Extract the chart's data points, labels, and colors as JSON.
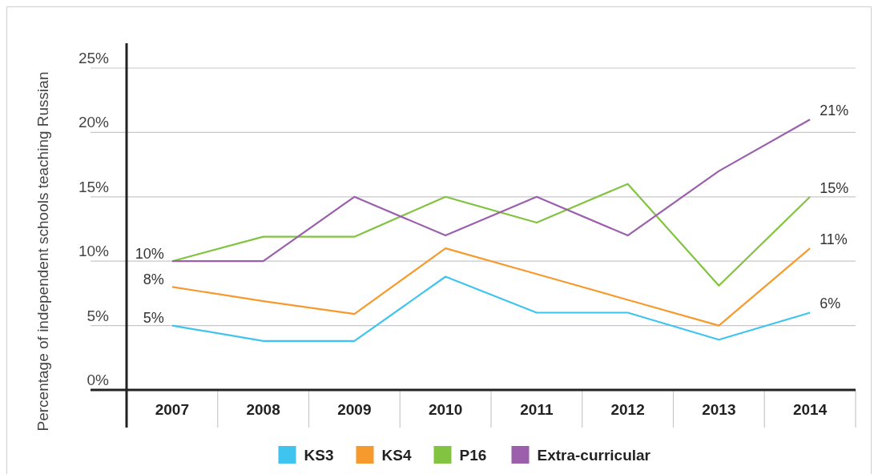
{
  "chart_data": {
    "type": "line",
    "ylabel": "Percentage of independent schools teaching Russian",
    "categories": [
      "2007",
      "2008",
      "2009",
      "2010",
      "2011",
      "2012",
      "2013",
      "2014"
    ],
    "series": [
      {
        "name": "KS3",
        "color": "#3fc4f0",
        "values": [
          5,
          3.8,
          3.8,
          8.8,
          6,
          6,
          3.9,
          6
        ],
        "value_labels": [
          "5%",
          null,
          null,
          null,
          null,
          null,
          null,
          "6%"
        ]
      },
      {
        "name": "KS4",
        "color": "#f79a2e",
        "values": [
          8,
          6.9,
          5.9,
          11,
          9,
          7,
          5,
          11
        ],
        "value_labels": [
          "8%",
          null,
          null,
          null,
          null,
          null,
          null,
          "11%"
        ]
      },
      {
        "name": "P16",
        "color": "#82c341",
        "values": [
          10,
          11.9,
          11.9,
          15,
          13,
          16,
          8.1,
          15
        ],
        "value_labels": [
          "10%",
          null,
          null,
          null,
          null,
          null,
          null,
          "15%"
        ]
      },
      {
        "name": "Extra-curricular",
        "color": "#9b5fac",
        "values": [
          10,
          10,
          15,
          12,
          15,
          12,
          17,
          21
        ],
        "value_labels": [
          null,
          null,
          null,
          null,
          null,
          null,
          null,
          "21%"
        ]
      }
    ],
    "ylim": [
      0,
      25
    ],
    "yticks": [
      {
        "value": 0,
        "label": "0%"
      },
      {
        "value": 5,
        "label": "5%"
      },
      {
        "value": 10,
        "label": "10%"
      },
      {
        "value": 15,
        "label": "15%"
      },
      {
        "value": 20,
        "label": "20%"
      },
      {
        "value": 25,
        "label": "25%"
      }
    ],
    "grid": "y",
    "legend": "bottom",
    "marker": "none",
    "line_style": "solid"
  }
}
